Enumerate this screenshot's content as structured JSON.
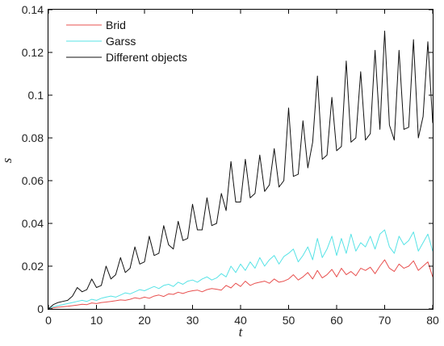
{
  "chart_data": {
    "type": "line",
    "xlabel": "t",
    "ylabel": "s",
    "xlim": [
      0,
      80
    ],
    "ylim": [
      0,
      0.14
    ],
    "xticks": [
      "0",
      "10",
      "20",
      "30",
      "40",
      "50",
      "60",
      "70",
      "80"
    ],
    "yticks": [
      "0",
      "0.02",
      "0.04",
      "0.06",
      "0.08",
      "0.1",
      "0.12",
      "0.14"
    ],
    "grid": false,
    "legend_position": "top-left",
    "x": [
      0,
      1,
      2,
      3,
      4,
      5,
      6,
      7,
      8,
      9,
      10,
      11,
      12,
      13,
      14,
      15,
      16,
      17,
      18,
      19,
      20,
      21,
      22,
      23,
      24,
      25,
      26,
      27,
      28,
      29,
      30,
      31,
      32,
      33,
      34,
      35,
      36,
      37,
      38,
      39,
      40,
      41,
      42,
      43,
      44,
      45,
      46,
      47,
      48,
      49,
      50,
      51,
      52,
      53,
      54,
      55,
      56,
      57,
      58,
      59,
      60,
      61,
      62,
      63,
      64,
      65,
      66,
      67,
      68,
      69,
      70,
      71,
      72,
      73,
      74,
      75,
      76,
      77,
      78,
      79,
      80
    ],
    "series": [
      {
        "name": "Brid",
        "color": "#e8504f",
        "values": [
          0,
          0.0005,
          0.0008,
          0.001,
          0.0012,
          0.0015,
          0.0018,
          0.0022,
          0.002,
          0.0028,
          0.0025,
          0.003,
          0.0032,
          0.0035,
          0.0038,
          0.0042,
          0.004,
          0.0045,
          0.0052,
          0.0048,
          0.0055,
          0.005,
          0.006,
          0.0065,
          0.0058,
          0.007,
          0.0068,
          0.0078,
          0.0072,
          0.008,
          0.0085,
          0.0088,
          0.008,
          0.009,
          0.0095,
          0.0092,
          0.0088,
          0.011,
          0.0098,
          0.012,
          0.0105,
          0.013,
          0.011,
          0.012,
          0.0125,
          0.013,
          0.012,
          0.014,
          0.0125,
          0.013,
          0.014,
          0.016,
          0.0135,
          0.015,
          0.017,
          0.014,
          0.018,
          0.0145,
          0.016,
          0.0185,
          0.015,
          0.019,
          0.016,
          0.0175,
          0.0155,
          0.019,
          0.018,
          0.0195,
          0.0165,
          0.02,
          0.023,
          0.019,
          0.0175,
          0.021,
          0.019,
          0.02,
          0.0225,
          0.018,
          0.02,
          0.022,
          0.015
        ]
      },
      {
        "name": "Garss",
        "color": "#57e3e6",
        "values": [
          0,
          0.001,
          0.0015,
          0.002,
          0.0025,
          0.003,
          0.0035,
          0.004,
          0.0035,
          0.0045,
          0.004,
          0.005,
          0.0055,
          0.006,
          0.0055,
          0.0065,
          0.0075,
          0.007,
          0.008,
          0.009,
          0.0085,
          0.0095,
          0.0105,
          0.0095,
          0.011,
          0.0115,
          0.0105,
          0.0125,
          0.0115,
          0.013,
          0.0135,
          0.0125,
          0.014,
          0.015,
          0.0135,
          0.0145,
          0.0165,
          0.015,
          0.02,
          0.017,
          0.021,
          0.018,
          0.022,
          0.019,
          0.024,
          0.02,
          0.023,
          0.025,
          0.021,
          0.0245,
          0.026,
          0.028,
          0.022,
          0.025,
          0.029,
          0.023,
          0.033,
          0.024,
          0.028,
          0.034,
          0.025,
          0.033,
          0.026,
          0.035,
          0.027,
          0.031,
          0.029,
          0.034,
          0.028,
          0.035,
          0.037,
          0.029,
          0.026,
          0.034,
          0.03,
          0.032,
          0.036,
          0.027,
          0.031,
          0.035,
          0.027
        ]
      },
      {
        "name": "Different objects",
        "color": "#111111",
        "values": [
          0,
          0.002,
          0.003,
          0.0035,
          0.004,
          0.006,
          0.01,
          0.008,
          0.009,
          0.014,
          0.01,
          0.011,
          0.02,
          0.014,
          0.016,
          0.024,
          0.017,
          0.019,
          0.029,
          0.021,
          0.022,
          0.034,
          0.025,
          0.026,
          0.039,
          0.03,
          0.028,
          0.041,
          0.032,
          0.033,
          0.049,
          0.037,
          0.037,
          0.052,
          0.039,
          0.04,
          0.054,
          0.046,
          0.069,
          0.05,
          0.05,
          0.07,
          0.052,
          0.054,
          0.072,
          0.055,
          0.058,
          0.075,
          0.057,
          0.06,
          0.094,
          0.062,
          0.063,
          0.088,
          0.066,
          0.078,
          0.109,
          0.07,
          0.072,
          0.099,
          0.074,
          0.076,
          0.116,
          0.078,
          0.08,
          0.111,
          0.079,
          0.082,
          0.121,
          0.084,
          0.13,
          0.086,
          0.079,
          0.121,
          0.084,
          0.085,
          0.126,
          0.08,
          0.09,
          0.125,
          0.087
        ]
      }
    ]
  }
}
